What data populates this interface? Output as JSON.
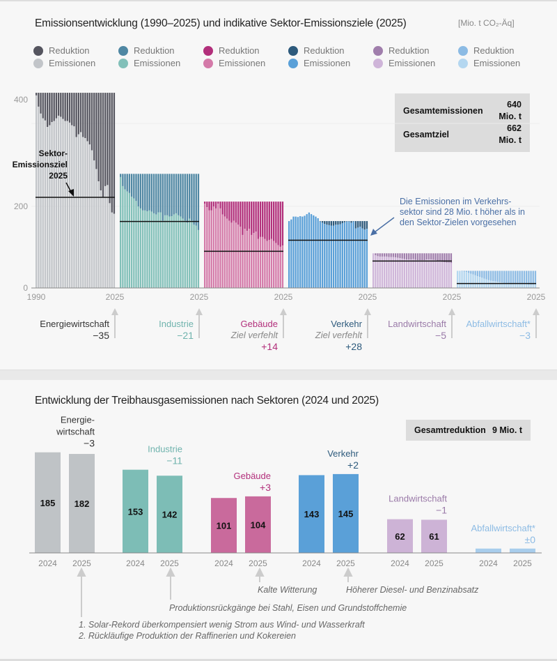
{
  "top": {
    "title": "Emissionsentwicklung (1990–2025) und indikative Sektor-Emissionsziele (2025)",
    "unit": "[Mio. t CO₂-Äq]",
    "legend": [
      {
        "reduction_label": "Reduktion",
        "emissions_label": "Emissionen",
        "reduction_color": "#55555f",
        "emissions_color": "#c2c5c9"
      },
      {
        "reduction_label": "Reduktion",
        "emissions_label": "Emissionen",
        "reduction_color": "#4f87a3",
        "emissions_color": "#82c0b9"
      },
      {
        "reduction_label": "Reduktion",
        "emissions_label": "Emissionen",
        "reduction_color": "#b22f7b",
        "emissions_color": "#d47aa9"
      },
      {
        "reduction_label": "Reduktion",
        "emissions_label": "Emissionen",
        "reduction_color": "#2d5a7c",
        "emissions_color": "#5aa0d8"
      },
      {
        "reduction_label": "Reduktion",
        "emissions_label": "Emissionen",
        "reduction_color": "#a07eac",
        "emissions_color": "#cfb5d9"
      },
      {
        "reduction_label": "Reduktion",
        "emissions_label": "Emissionen",
        "reduction_color": "#8cbbe4",
        "emissions_color": "#b4d7f0"
      }
    ],
    "summary_box": [
      {
        "label": "Gesamtemissionen",
        "value": "640 Mio. t"
      },
      {
        "label": "Gesamtziel",
        "value": "662 Mio. t"
      }
    ],
    "target_annotation": [
      "Sektor-",
      "Emissionsziel",
      "2025"
    ],
    "verkehr_annotation": [
      "Die Emissionen im Verkehrs-",
      "sektor sind 28 Mio. t höher als in",
      "den Sektor-Zielen vorgesehen"
    ],
    "annotation_color": "#4a6fa5",
    "sector_labels": [
      {
        "name": "Energiewirtschaft",
        "note": "",
        "delta": "−35",
        "color": "#333333",
        "delta_color": "#333333"
      },
      {
        "name": "Industrie",
        "note": "",
        "delta": "−21",
        "color": "#6fb3ad",
        "delta_color": "#6fb3ad"
      },
      {
        "name": "Gebäude",
        "note": "Ziel verfehlt",
        "delta": "+14",
        "color": "#b22f7b",
        "delta_color": "#b22f7b"
      },
      {
        "name": "Verkehr",
        "note": "Ziel verfehlt",
        "delta": "+28",
        "color": "#2d5a7c",
        "delta_color": "#2d5a7c"
      },
      {
        "name": "Landwirtschaft",
        "note": "",
        "delta": "−5",
        "color": "#9a7aa8",
        "delta_color": "#9a7aa8"
      },
      {
        "name": "Abfallwirtschaft*",
        "note": "",
        "delta": "−3",
        "color": "#8cbbe4",
        "delta_color": "#8cbbe4"
      }
    ]
  },
  "bottom": {
    "title": "Entwicklung der Treibhausgasemissionen nach Sektoren (2024 und 2025)",
    "summary_box": {
      "label": "Gesamtreduktion",
      "value": "9 Mio. t"
    },
    "notes": {
      "gebaeude": "Kalte Witterung",
      "verkehr": "Höherer Diesel- und Benzinabsatz",
      "industrie": "Produktionsrückgänge bei Stahl, Eisen und Grundstoffchemie",
      "energie_1": "1. Solar-Rekord überkompensiert wenig Strom aus Wind- und Wasserkraft",
      "energie_2": "2. Rückläufige Produktion der Raffinerien und Kokereien"
    }
  },
  "chart_data": [
    {
      "type": "bar",
      "title": "Emissionsentwicklung (1990–2025) und indikative Sektor-Emissionsziele (2025)",
      "ylabel": "[Mio. t CO₂-Äq]",
      "y_ticks": [
        "0",
        "200",
        "400"
      ],
      "x_start_label": "1990",
      "x_end_label": "2025",
      "years": [
        1990,
        2025
      ],
      "grid": true,
      "sectors": [
        {
          "name": "Energiewirtschaft",
          "reference": 413,
          "target": 217,
          "emissions": [
            408,
            387,
            374,
            365,
            361,
            349,
            352,
            358,
            360,
            365,
            370,
            368,
            364,
            360,
            360,
            357,
            352,
            350,
            330,
            335,
            339,
            330,
            328,
            322,
            316,
            305,
            286,
            270,
            247,
            230,
            217,
            238,
            240,
            206,
            185,
            182
          ]
        },
        {
          "name": "Industrie",
          "reference": 261,
          "target": 163,
          "emissions": [
            255,
            238,
            232,
            228,
            225,
            218,
            215,
            210,
            200,
            195,
            190,
            190,
            188,
            190,
            187,
            183,
            180,
            185,
            185,
            165,
            178,
            178,
            175,
            176,
            180,
            183,
            178,
            175,
            170,
            165,
            160,
            170,
            165,
            155,
            153,
            142
          ]
        },
        {
          "name": "Gebäude",
          "reference": 209,
          "target": 90,
          "emissions": [
            205,
            198,
            190,
            190,
            200,
            195,
            205,
            195,
            180,
            175,
            170,
            165,
            160,
            165,
            160,
            155,
            150,
            130,
            145,
            140,
            145,
            130,
            135,
            138,
            120,
            125,
            125,
            120,
            115,
            118,
            120,
            115,
            110,
            105,
            101,
            104
          ]
        },
        {
          "name": "Verkehr",
          "reference": 164,
          "target": 117,
          "emissions": [
            164,
            168,
            175,
            175,
            174,
            176,
            175,
            177,
            181,
            185,
            181,
            178,
            175,
            171,
            163,
            160,
            157,
            155,
            154,
            153,
            153,
            155,
            155,
            156,
            159,
            161,
            163,
            163,
            160,
            163,
            146,
            148,
            150,
            146,
            143,
            145
          ]
        },
        {
          "name": "Landwirtschaft",
          "reference": 85,
          "target": 66,
          "emissions": [
            85,
            80,
            78,
            77,
            77,
            77,
            77,
            76,
            76,
            76,
            75,
            74,
            73,
            72,
            71,
            70,
            70,
            70,
            71,
            69,
            68,
            68,
            68,
            68,
            70,
            70,
            70,
            69,
            68,
            66,
            65,
            64,
            63,
            62,
            62,
            61
          ]
        },
        {
          "name": "Abfallwirtschaft*",
          "reference": 42,
          "target": 11,
          "emissions": [
            42,
            42,
            41,
            40,
            39,
            37,
            35,
            33,
            31,
            29,
            27,
            25,
            23,
            21,
            19,
            18,
            17,
            16,
            15,
            14,
            13,
            12,
            12,
            11,
            11,
            10,
            10,
            10,
            9,
            9,
            9,
            9,
            8,
            8,
            8,
            8
          ]
        }
      ]
    },
    {
      "type": "bar",
      "title": "Entwicklung der Treibhausgasemissionen nach Sektoren (2024 und 2025)",
      "categories": [
        "2024",
        "2025"
      ],
      "series": [
        {
          "name": "Energiewirtschaft",
          "label_lines": [
            "Energie-",
            "wirtschaft"
          ],
          "change": "−3",
          "values": [
            185,
            182
          ],
          "value_labels": [
            "185",
            "182"
          ],
          "color": "#bfc3c6",
          "label_color": "#333333"
        },
        {
          "name": "Industrie",
          "label_lines": [
            "Industrie"
          ],
          "change": "−11",
          "values": [
            153,
            142
          ],
          "value_labels": [
            "153",
            "142"
          ],
          "color": "#7dbdb6",
          "label_color": "#6fb3ad"
        },
        {
          "name": "Gebäude",
          "label_lines": [
            "Gebäude"
          ],
          "change": "+3",
          "values": [
            101,
            104
          ],
          "value_labels": [
            "101",
            "104"
          ],
          "color": "#c96a9c",
          "label_color": "#b22f7b"
        },
        {
          "name": "Verkehr",
          "label_lines": [
            "Verkehr"
          ],
          "change": "+2",
          "values": [
            143,
            145
          ],
          "value_labels": [
            "143",
            "145"
          ],
          "color": "#5aa0d8",
          "label_color": "#2d5a7c"
        },
        {
          "name": "Landwirtschaft",
          "label_lines": [
            "Landwirtschaft"
          ],
          "change": "−1",
          "values": [
            62,
            61
          ],
          "value_labels": [
            "62",
            "61"
          ],
          "color": "#cdb3d6",
          "label_color": "#9a7aa8"
        },
        {
          "name": "Abfallwirtschaft*",
          "label_lines": [
            "Abfallwirtschaft*"
          ],
          "change": "±0",
          "values": [
            8,
            8
          ],
          "value_labels": [
            "",
            ""
          ],
          "color": "#a8cdec",
          "label_color": "#8cbbe4"
        }
      ]
    }
  ]
}
